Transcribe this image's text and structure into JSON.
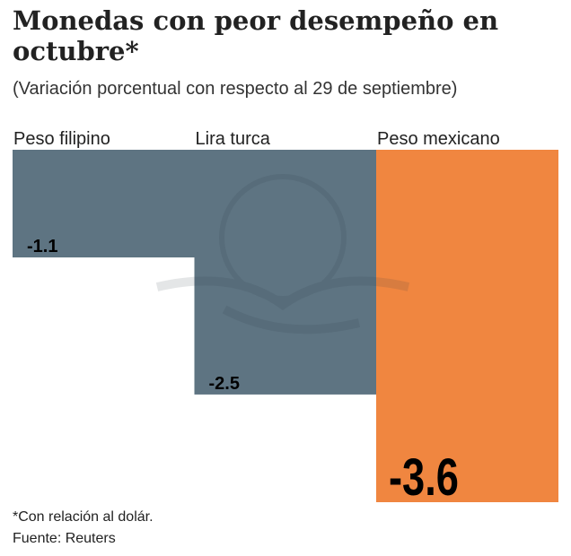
{
  "title": "Monedas con peor desempeño en octubre*",
  "subtitle": "(Variación porcentual con respecto al 29 de septiembre)",
  "footnote": "*Con relación al dolár.",
  "source": "Fuente: Reuters",
  "chart_data": {
    "type": "bar",
    "title": "Monedas con peor desempeño en octubre*",
    "subtitle": "(Variación porcentual con respecto al 29 de septiembre)",
    "categories": [
      "Peso filipino",
      "Lira turca",
      "Peso mexicano"
    ],
    "values": [
      -1.1,
      -2.5,
      -3.6
    ],
    "value_labels": [
      "-1.1",
      "-2.5",
      "-3.6"
    ],
    "colors": [
      "#5e7482",
      "#5e7482",
      "#f08640"
    ],
    "ylim": [
      -3.6,
      0
    ],
    "grid": false,
    "legend": "none"
  }
}
